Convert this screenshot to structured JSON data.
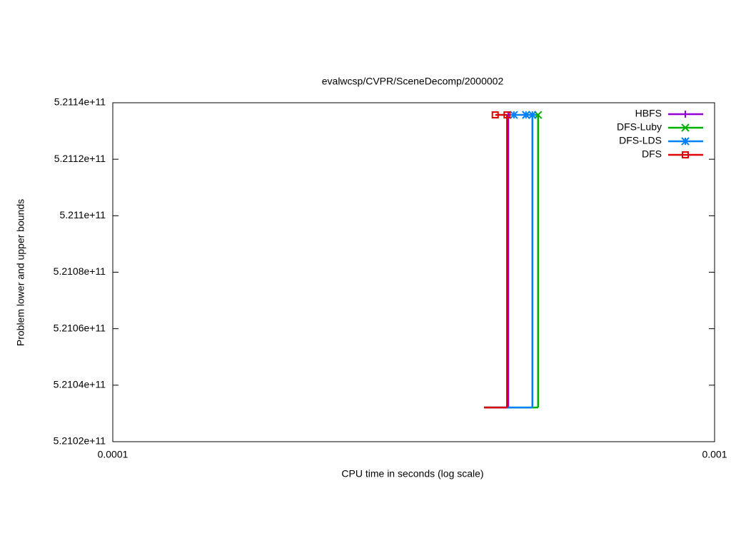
{
  "chart_data": {
    "type": "step",
    "title": "evalwcsp/CVPR/SceneDecomp/2000002",
    "x_label": "CPU time in seconds (log scale)",
    "y_label": "Problem lower and upper bounds",
    "xscale": "log",
    "xlim": [
      0.0001,
      0.001
    ],
    "xticks": [
      0.0001,
      0.001
    ],
    "ylim": [
      521020000000,
      521140000000
    ],
    "yticks": [
      {
        "value": 521020000000,
        "label": "5.2102e+11"
      },
      {
        "value": 521040000000,
        "label": "5.2104e+11"
      },
      {
        "value": 521060000000,
        "label": "5.2106e+11"
      },
      {
        "value": 521080000000,
        "label": "5.2108e+11"
      },
      {
        "value": 521100000000,
        "label": "5.211e+11"
      },
      {
        "value": 521120000000,
        "label": "5.2112e+11"
      },
      {
        "value": 521140000000,
        "label": "5.2114e+11"
      }
    ],
    "legend": "top-right",
    "series": [
      {
        "name": "HBFS",
        "color": "#9400d3",
        "marker": "plus",
        "lower": {
          "x": [
            0.000414,
            0.000454
          ],
          "values": [
            521032100000,
            521032100000
          ]
        },
        "upper": {
          "x": [
            0.000454
          ],
          "values": [
            521135700000
          ]
        }
      },
      {
        "name": "DFS-Luby",
        "color": "#00b000",
        "marker": "cross",
        "lower": {
          "x": [
            0.000414,
            0.000509
          ],
          "values": [
            521032100000,
            521032100000
          ]
        },
        "upper": {
          "x": [
            0.000486,
            0.000509
          ],
          "values": [
            521135700000,
            521135700000
          ]
        }
      },
      {
        "name": "DFS-LDS",
        "color": "#0080ff",
        "marker": "star",
        "lower": {
          "x": [
            0.000414,
            0.000498
          ],
          "values": [
            521032100000,
            521032100000
          ]
        },
        "upper": {
          "x": [
            0.000464,
            0.000486,
            0.000498
          ],
          "values": [
            521135700000,
            521135700000,
            521135700000
          ]
        }
      },
      {
        "name": "DFS",
        "color": "#e00000",
        "marker": "square",
        "lower": {
          "x": [
            0.000414,
            0.000452
          ],
          "values": [
            521032100000,
            521032100000
          ]
        },
        "upper": {
          "x": [
            0.000432,
            0.000452
          ],
          "values": [
            521135700000,
            521135700000
          ]
        }
      }
    ]
  }
}
